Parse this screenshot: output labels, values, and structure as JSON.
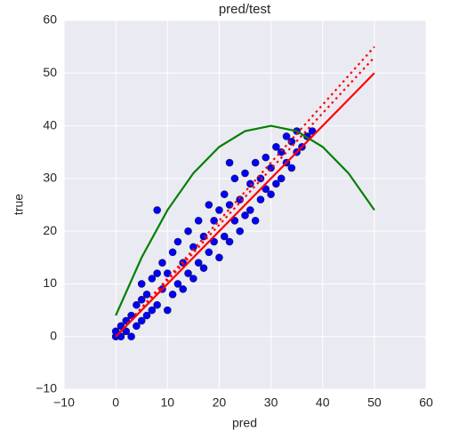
{
  "chart_data": {
    "type": "scatter",
    "title": "pred/test",
    "x_label": "pred",
    "y_label": "true",
    "xlim": [
      -10,
      60
    ],
    "ylim": [
      -10,
      60
    ],
    "xticks": [
      {
        "value": -10,
        "label": "−10"
      },
      0,
      10,
      20,
      30,
      40,
      50,
      60
    ],
    "yticks": [
      {
        "value": -10,
        "label": "−10"
      },
      0,
      10,
      20,
      30,
      40,
      50,
      60
    ],
    "grid": true,
    "series": [
      {
        "type": "scatter",
        "color": "#0000ff",
        "x": [
          0,
          0,
          1,
          1,
          2,
          2,
          3,
          3,
          4,
          4,
          5,
          5,
          5,
          6,
          6,
          7,
          7,
          8,
          8,
          9,
          9,
          10,
          10,
          11,
          11,
          12,
          12,
          13,
          13,
          14,
          14,
          15,
          15,
          16,
          16,
          17,
          17,
          18,
          18,
          19,
          19,
          20,
          20,
          21,
          21,
          22,
          22,
          23,
          23,
          24,
          24,
          25,
          25,
          26,
          26,
          27,
          27,
          28,
          28,
          29,
          29,
          30,
          30,
          31,
          31,
          32,
          32,
          33,
          33,
          34,
          34,
          35,
          35,
          36,
          37,
          38,
          8,
          22
        ],
        "values": [
          0,
          1,
          0,
          2,
          1,
          3,
          0,
          4,
          2,
          6,
          3,
          7,
          10,
          4,
          8,
          5,
          11,
          6,
          12,
          9,
          14,
          5,
          12,
          8,
          16,
          10,
          18,
          9,
          14,
          12,
          20,
          11,
          17,
          14,
          22,
          13,
          19,
          16,
          25,
          18,
          22,
          15,
          24,
          19,
          27,
          18,
          25,
          22,
          30,
          20,
          26,
          23,
          31,
          24,
          29,
          22,
          33,
          26,
          30,
          28,
          34,
          27,
          32,
          29,
          36,
          30,
          35,
          33,
          38,
          32,
          37,
          35,
          39,
          36,
          38,
          39,
          24,
          33
        ]
      },
      {
        "type": "line",
        "color": "#008000",
        "style": "solid",
        "x": [
          0,
          5,
          10,
          15,
          20,
          25,
          30,
          35,
          40,
          45,
          50
        ],
        "values": [
          4,
          15,
          24,
          31,
          36,
          39,
          40,
          39,
          36,
          31,
          24
        ]
      },
      {
        "type": "line",
        "color": "#ff0000",
        "style": "dotted",
        "x": [
          0,
          50
        ],
        "values": [
          0,
          55
        ]
      },
      {
        "type": "line",
        "color": "#ff0000",
        "style": "dotted",
        "x": [
          0,
          50
        ],
        "values": [
          0,
          53
        ]
      },
      {
        "type": "line",
        "color": "#ff0000",
        "style": "solid",
        "x": [
          0,
          50
        ],
        "values": [
          0,
          50
        ]
      }
    ]
  }
}
